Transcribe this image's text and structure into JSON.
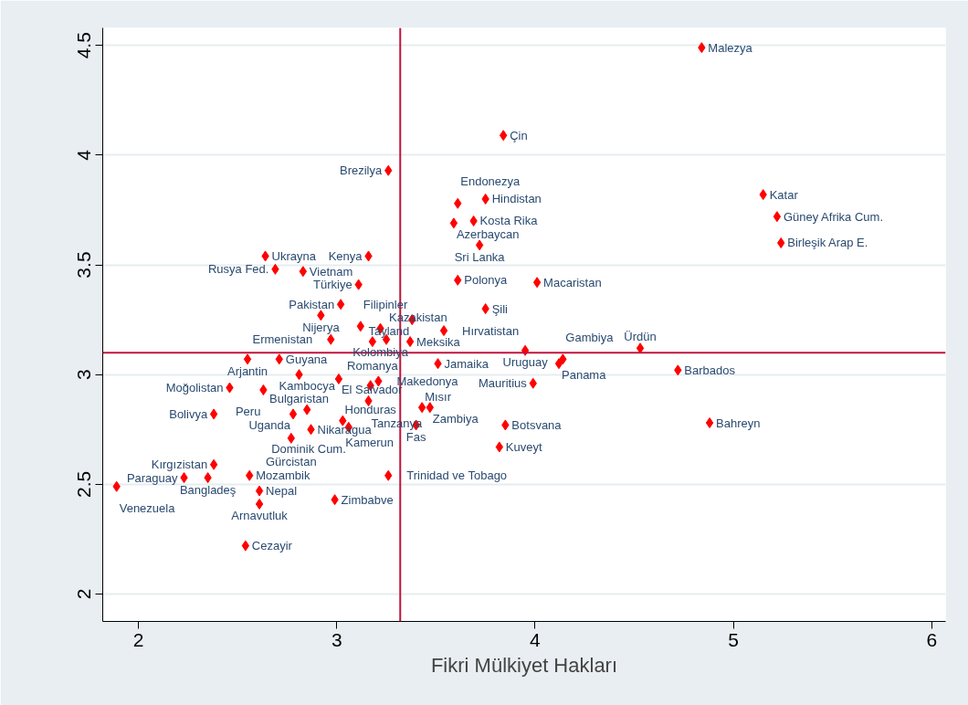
{
  "chart_data": {
    "type": "scatter",
    "xlabel": "Fikri Mülkiyet Hakları",
    "xlim": [
      1.82,
      6.07
    ],
    "ylim": [
      1.875,
      4.58
    ],
    "xticks": [
      2,
      3,
      4,
      5,
      6
    ],
    "yticks": [
      2,
      2.5,
      3,
      3.5,
      4,
      4.5
    ],
    "grid": "y",
    "marker": "diamond",
    "ref_lines": [
      {
        "axis": "x",
        "value": 3.32,
        "color": "#c0143c"
      },
      {
        "axis": "y",
        "value": 3.1,
        "color": "#c0143c"
      }
    ],
    "series": [
      {
        "color": "#ff0000",
        "x": [
          2.64,
          2.69,
          2.83,
          3.16,
          3.11,
          3.02,
          2.92,
          3.12,
          3.22,
          2.97,
          3.18,
          3.25,
          3.37,
          2.55,
          2.71,
          2.81,
          3.01,
          2.46,
          2.63,
          3.17,
          3.21,
          3.16,
          2.38,
          2.78,
          2.85,
          3.03,
          3.06,
          2.87,
          2.77,
          2.38,
          2.35,
          2.23,
          1.89,
          2.56,
          2.61,
          2.61,
          2.99,
          2.54,
          3.26,
          3.26,
          3.84,
          3.61,
          3.75,
          3.59,
          3.69,
          3.72,
          3.61,
          4.01,
          3.75,
          3.38,
          3.54,
          3.95,
          4.12,
          4.14,
          3.51,
          3.99,
          3.43,
          3.47,
          3.4,
          3.85,
          3.82,
          4.84,
          5.15,
          5.22,
          5.24,
          4.53,
          4.72,
          4.88
        ],
        "values": [
          3.54,
          3.48,
          3.47,
          3.54,
          3.41,
          3.32,
          3.27,
          3.22,
          3.21,
          3.16,
          3.15,
          3.16,
          3.15,
          3.07,
          3.07,
          3.0,
          2.98,
          2.94,
          2.93,
          2.95,
          2.97,
          2.88,
          2.82,
          2.82,
          2.84,
          2.79,
          2.76,
          2.75,
          2.71,
          2.59,
          2.53,
          2.53,
          2.49,
          2.54,
          2.47,
          2.41,
          2.43,
          2.22,
          2.54,
          3.93,
          4.09,
          3.78,
          3.8,
          3.69,
          3.7,
          3.59,
          3.43,
          3.42,
          3.3,
          3.25,
          3.2,
          3.11,
          3.05,
          3.07,
          3.05,
          2.96,
          2.85,
          2.85,
          2.77,
          2.77,
          2.67,
          4.49,
          3.82,
          3.72,
          3.6,
          3.12,
          3.02,
          2.78
        ]
      }
    ],
    "annotations": [
      {
        "text": "Ukrayna",
        "x": 2.64,
        "y": 3.54
      },
      {
        "text": "Rusya Fed.",
        "x": 2.69,
        "y": 3.48
      },
      {
        "text": "Vietnam",
        "x": 2.83,
        "y": 3.47
      },
      {
        "text": "Kenya",
        "x": 3.16,
        "y": 3.54
      },
      {
        "text": "Türkiye",
        "x": 3.11,
        "y": 3.41
      },
      {
        "text": "Pakistan",
        "x": 3.02,
        "y": 3.32
      },
      {
        "text": "Nijerya",
        "x": 2.92,
        "y": 3.27
      },
      {
        "text": "Filipinler",
        "x": 3.12,
        "y": 3.22
      },
      {
        "text": "Kolombiya",
        "x": 3.22,
        "y": 3.21
      },
      {
        "text": "Ermenistan",
        "x": 2.97,
        "y": 3.16
      },
      {
        "text": "Romanya",
        "x": 3.18,
        "y": 3.15
      },
      {
        "text": "Kazakistan",
        "x": 3.25,
        "y": 3.16
      },
      {
        "text": "Meksika",
        "x": 3.37,
        "y": 3.15
      },
      {
        "text": "Arjantin",
        "x": 2.55,
        "y": 3.07
      },
      {
        "text": "Guyana",
        "x": 2.71,
        "y": 3.07
      },
      {
        "text": "Bulgaristan",
        "x": 2.81,
        "y": 3.0
      },
      {
        "text": "El Salvador",
        "x": 3.01,
        "y": 2.98
      },
      {
        "text": "Moğolistan",
        "x": 2.46,
        "y": 2.94
      },
      {
        "text": "Peru",
        "x": 2.63,
        "y": 2.93
      },
      {
        "text": "Honduras",
        "x": 3.17,
        "y": 2.95
      },
      {
        "text": "Makedonya",
        "x": 3.21,
        "y": 2.97
      },
      {
        "text": "Tanzanya",
        "x": 3.16,
        "y": 2.88
      },
      {
        "text": "Bolivya",
        "x": 2.38,
        "y": 2.82
      },
      {
        "text": "Uganda",
        "x": 2.78,
        "y": 2.82
      },
      {
        "text": "Kambocya",
        "x": 2.85,
        "y": 2.84
      },
      {
        "text": "Kamerun",
        "x": 3.03,
        "y": 2.79
      },
      {
        "text": "Dominik Cum.",
        "x": 3.06,
        "y": 2.76
      },
      {
        "text": "Nikaragua",
        "x": 2.87,
        "y": 2.75
      },
      {
        "text": "Gürcistan",
        "x": 2.77,
        "y": 2.71
      },
      {
        "text": "Kırgızistan",
        "x": 2.38,
        "y": 2.59
      },
      {
        "text": "Bangladeş",
        "x": 2.35,
        "y": 2.53
      },
      {
        "text": "Paraguay",
        "x": 2.23,
        "y": 2.53
      },
      {
        "text": "Venezuela",
        "x": 1.89,
        "y": 2.49
      },
      {
        "text": "Mozambik",
        "x": 2.56,
        "y": 2.54
      },
      {
        "text": "Nepal",
        "x": 2.61,
        "y": 2.47
      },
      {
        "text": "Arnavutluk",
        "x": 2.61,
        "y": 2.41
      },
      {
        "text": "Zimbabve",
        "x": 2.99,
        "y": 2.43
      },
      {
        "text": "Cezayir",
        "x": 2.54,
        "y": 2.22
      },
      {
        "text": "Trinidad ve Tobago",
        "x": 3.26,
        "y": 2.54
      },
      {
        "text": "Brezilya",
        "x": 3.26,
        "y": 3.93
      },
      {
        "text": "Çin",
        "x": 3.84,
        "y": 4.09
      },
      {
        "text": "Endonezya",
        "x": 3.61,
        "y": 3.78
      },
      {
        "text": "Hindistan",
        "x": 3.75,
        "y": 3.8
      },
      {
        "text": "Azerbaycan",
        "x": 3.59,
        "y": 3.69
      },
      {
        "text": "Kosta Rika",
        "x": 3.69,
        "y": 3.7
      },
      {
        "text": "Sri Lanka",
        "x": 3.72,
        "y": 3.59
      },
      {
        "text": "Polonya",
        "x": 3.61,
        "y": 3.43
      },
      {
        "text": "Macaristan",
        "x": 4.01,
        "y": 3.42
      },
      {
        "text": "Şili",
        "x": 3.75,
        "y": 3.3
      },
      {
        "text": "Tayland",
        "x": 3.38,
        "y": 3.25
      },
      {
        "text": "Hırvatistan",
        "x": 3.54,
        "y": 3.2
      },
      {
        "text": "Uruguay",
        "x": 3.95,
        "y": 3.11
      },
      {
        "text": "Panama",
        "x": 4.12,
        "y": 3.05
      },
      {
        "text": "Gambiya",
        "x": 4.14,
        "y": 3.07
      },
      {
        "text": "Jamaika",
        "x": 3.51,
        "y": 3.05
      },
      {
        "text": "Mauritius",
        "x": 3.99,
        "y": 2.96
      },
      {
        "text": "Mısır",
        "x": 3.43,
        "y": 2.85
      },
      {
        "text": "Zambiya",
        "x": 3.47,
        "y": 2.85
      },
      {
        "text": "Fas",
        "x": 3.4,
        "y": 2.77
      },
      {
        "text": "Botsvana",
        "x": 3.85,
        "y": 2.77
      },
      {
        "text": "Kuveyt",
        "x": 3.82,
        "y": 2.67
      },
      {
        "text": "Malezya",
        "x": 4.84,
        "y": 4.49
      },
      {
        "text": "Katar",
        "x": 5.15,
        "y": 3.82
      },
      {
        "text": "Güney Afrika Cum.",
        "x": 5.22,
        "y": 3.72
      },
      {
        "text": "Birleşik Arap E.",
        "x": 5.24,
        "y": 3.6
      },
      {
        "text": "Ürdün",
        "x": 4.53,
        "y": 3.12
      },
      {
        "text": "Barbados",
        "x": 4.72,
        "y": 3.02
      },
      {
        "text": "Bahreyn",
        "x": 4.88,
        "y": 2.78
      }
    ]
  }
}
